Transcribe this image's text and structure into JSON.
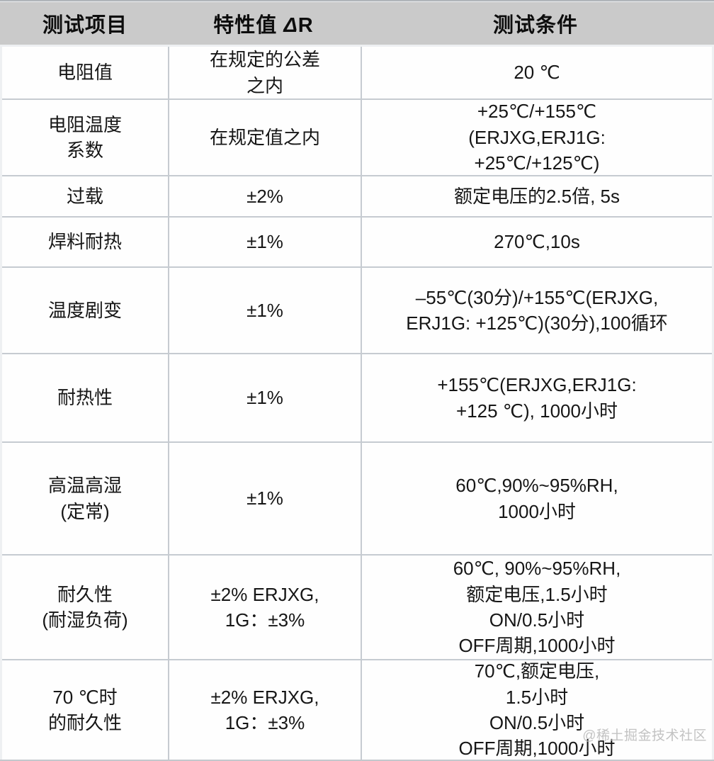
{
  "header": {
    "col1": "测试项目",
    "col2_prefix": "特性值 ",
    "col2_delta": "Δ",
    "col2_suffix": "R",
    "col3": "测试条件"
  },
  "rows": [
    {
      "item": "电阻值",
      "value": "在规定的公差\n之内",
      "condition": "20 ℃"
    },
    {
      "item": "电阻温度\n系数",
      "value": "在规定值之内",
      "condition": "+25℃/+155℃\n(ERJXG,ERJ1G:\n+25℃/+125℃)"
    },
    {
      "item": "过载",
      "value": "±2%",
      "condition": "额定电压的2.5倍, 5s"
    },
    {
      "item": "焊料耐热",
      "value": "±1%",
      "condition": "270℃,10s"
    },
    {
      "item": "温度剧变",
      "value": "±1%",
      "condition": "–55℃(30分)/+155℃(ERJXG,\nERJ1G: +125℃)(30分),100循环"
    },
    {
      "item": "耐热性",
      "value": "±1%",
      "condition": "+155℃(ERJXG,ERJ1G:\n+125 ℃), 1000小时"
    },
    {
      "item": "高温高湿\n(定常)",
      "value": "±1%",
      "condition": "60℃,90%~95%RH,\n1000小时"
    },
    {
      "item": "耐久性\n(耐湿负荷)",
      "value": "±2% ERJXG,\n1G：±3%",
      "condition": "60℃, 90%~95%RH,\n额定电压,1.5小时\nON/0.5小时\nOFF周期,1000小时"
    },
    {
      "item": "70 ℃时\n的耐久性",
      "value": "±2% ERJXG,\n1G：±3%",
      "condition": "70℃,额定电压,\n1.5小时\nON/0.5小时\nOFF周期,1000小时"
    }
  ],
  "watermark": "@稀土掘金技术社区",
  "colors": {
    "header_bg": "#cacaca",
    "cell_bg": "#fefefe",
    "grid_line": "#c6cbd1",
    "frame_bg": "#eef0f2",
    "watermark_text": "#c3c3c3"
  }
}
